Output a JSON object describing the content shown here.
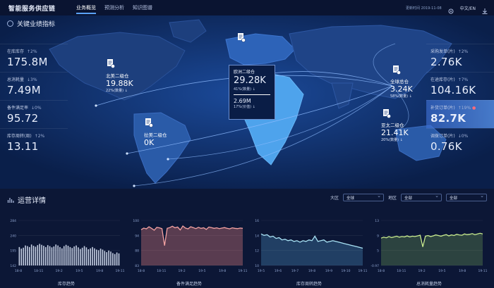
{
  "app": {
    "title": "智能服务供应链"
  },
  "nav": {
    "tabs": [
      "业务概览",
      "预测分析",
      "知识图谱"
    ]
  },
  "topright": {
    "time": "更新时间 2019-11-08",
    "lang": "中文/EN"
  },
  "key_section": {
    "title": "关键业绩指标"
  },
  "left_metrics": [
    {
      "label": "在库库存",
      "change": "↑2%",
      "value": "175.8M"
    },
    {
      "label": "总消耗量",
      "change": "↓3%",
      "value": "7.49M"
    },
    {
      "label": "备件满足率",
      "change": "↓0%",
      "value": "95.72"
    },
    {
      "label": "库存周转(周)",
      "change": "↑2%",
      "value": "13.11"
    }
  ],
  "right_metrics": [
    {
      "label": "采购发单(片)",
      "change": "↑2%",
      "value": "2.76K",
      "highlight": false
    },
    {
      "label": "在途库存(片)",
      "change": "↑7%",
      "value": "104.16K",
      "highlight": false
    },
    {
      "label": "补货订单(片)",
      "change": "↑19%",
      "value": "82.7K",
      "highlight": true
    },
    {
      "label": "调拨订单(片)",
      "change": "↓0%",
      "value": "0.76K",
      "highlight": false
    }
  ],
  "nodes": {
    "na": {
      "name": "北美二级仓",
      "value": "19.88K",
      "pct": "22%(数量) ↓"
    },
    "sa": {
      "name": "拉美二级仓",
      "value": "0K"
    },
    "global": {
      "name": "全球总仓",
      "value": "3.24K",
      "pct": "58%(数量) ↓"
    },
    "asia": {
      "name": "亚太二级仓",
      "value": "21.41K",
      "pct": "20%(数量) ↓"
    }
  },
  "popup": {
    "name": "欧洲二级仓",
    "value": "29.28K",
    "pct1": "41%(数量) ↓",
    "value2": "2.69M",
    "pct2": "17%(价值) ↓"
  },
  "ops_section": {
    "title": "运营详情"
  },
  "filters": [
    {
      "label": "大区",
      "value": "全球"
    },
    {
      "label": "地区",
      "value": "全部"
    },
    {
      "label": "",
      "value": "全部"
    }
  ],
  "chart_data": [
    {
      "type": "bar",
      "title": "库存趋势",
      "yticks": [
        "284",
        "240",
        "195",
        "142"
      ],
      "ylim": [
        142,
        284
      ],
      "xticks": [
        "18-8",
        "18-11",
        "19-2",
        "19-5",
        "19-8",
        "19-11"
      ],
      "values": [
        200,
        195,
        198,
        205,
        203,
        200,
        208,
        204,
        201,
        206,
        210,
        207,
        204,
        200,
        206,
        203,
        199,
        202,
        208,
        205,
        200,
        196,
        203,
        207,
        204,
        200,
        197,
        202,
        205,
        199,
        194,
        198,
        203,
        199,
        193,
        196,
        200,
        196,
        192,
        190,
        195,
        192,
        188,
        184,
        189,
        186,
        181,
        178,
        183,
        180
      ]
    },
    {
      "type": "area",
      "title": "备件满足趋势",
      "yticks": [
        "100",
        "94",
        "88",
        "83"
      ],
      "ylim": [
        83,
        100
      ],
      "xticks": [
        "18-8",
        "18-11",
        "19-2",
        "19-5",
        "19-8",
        "19-11"
      ],
      "values": [
        96.5,
        97.1,
        96.8,
        97.6,
        97.0,
        96.3,
        97.4,
        97.2,
        96.9,
        90.5,
        97.0,
        97.3,
        97.8,
        97.2,
        97.5,
        96.4,
        97.9,
        97.1,
        96.8,
        97.6,
        97.3,
        96.9,
        97.4,
        97.0,
        97.2,
        96.6,
        97.5,
        97.3,
        97.0,
        97.2,
        96.9,
        97.1,
        97.3,
        97.0,
        96.8,
        97.2,
        97.0,
        96.9,
        97.1,
        97.0
      ]
    },
    {
      "type": "area",
      "title": "库存周转趋势",
      "yticks": [
        "16",
        "14",
        "12",
        "10"
      ],
      "ylim": [
        10,
        16
      ],
      "xticks": [
        "19-5",
        "19-6",
        "19-7",
        "19-8",
        "19-9",
        "19-10",
        "19-11"
      ],
      "values": [
        14.2,
        14.0,
        14.1,
        13.8,
        13.9,
        13.6,
        13.7,
        13.4,
        13.5,
        13.3,
        13.4,
        13.2,
        13.3,
        13.1,
        13.3,
        13.2,
        13.4,
        13.3,
        13.9,
        13.2,
        13.3,
        13.4,
        13.1,
        13.2,
        13.3,
        13.2,
        13.1,
        13.0,
        12.9,
        12.8,
        12.7,
        12.6,
        12.5,
        12.4,
        12.3
      ]
    },
    {
      "type": "area",
      "title": "总消耗量趋势",
      "yticks": [
        "13",
        "9",
        "5",
        "-0.97"
      ],
      "ylim": [
        -0.97,
        13
      ],
      "xticks": [
        "18-8",
        "18-11",
        "19-2",
        "19-5",
        "19-8",
        "19-11"
      ],
      "values": [
        7.5,
        7.8,
        7.6,
        8.0,
        7.7,
        7.9,
        8.1,
        7.8,
        8.0,
        7.9,
        8.2,
        7.9,
        8.1,
        8.0,
        8.2,
        8.4,
        4.8,
        8.1,
        8.3,
        8.0,
        8.2,
        8.5,
        8.3,
        8.1,
        8.4,
        8.6,
        8.2,
        8.5,
        8.3,
        8.7,
        8.5,
        8.4,
        8.8,
        8.6,
        8.7,
        8.9,
        8.6,
        8.8,
        9.0,
        8.8
      ]
    }
  ]
}
